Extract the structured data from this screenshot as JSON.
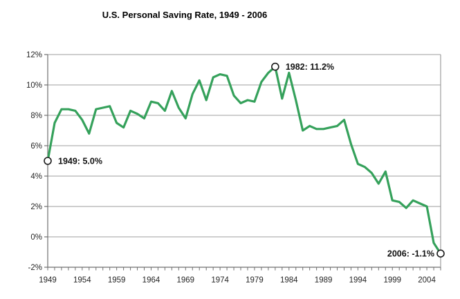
{
  "title": "U.S. Personal Saving Rate, 1949 - 2006",
  "colors": {
    "background": "#ffffff",
    "line": "#35a15b",
    "grid": "#9d9d9d",
    "axis": "#6e6e6e",
    "tick_text": "#262626",
    "title_text": "#111111",
    "annotation_text": "#111111",
    "marker_fill": "#ffffff",
    "marker_stroke": "#1a1a1a"
  },
  "chart_data": {
    "type": "line",
    "title": "U.S. Personal Saving Rate, 1949 - 2006",
    "xlabel": "",
    "ylabel": "",
    "grid": "horizontal",
    "legend": "none",
    "ylim": [
      -2,
      12
    ],
    "y_tick_step": 2,
    "y_tick_labels": [
      "12%",
      "10%",
      "8%",
      "6%",
      "4%",
      "2%",
      "0%",
      "-2%"
    ],
    "x_tick_labels": [
      "1949",
      "1954",
      "1959",
      "1964",
      "1969",
      "1974",
      "1979",
      "1984",
      "1989",
      "1994",
      "1999",
      "2004"
    ],
    "x_minor_tick_every": 1,
    "x": [
      1949,
      1950,
      1951,
      1952,
      1953,
      1954,
      1955,
      1956,
      1957,
      1958,
      1959,
      1960,
      1961,
      1962,
      1963,
      1964,
      1965,
      1966,
      1967,
      1968,
      1969,
      1970,
      1971,
      1972,
      1973,
      1974,
      1975,
      1976,
      1977,
      1978,
      1979,
      1980,
      1981,
      1982,
      1983,
      1984,
      1985,
      1986,
      1987,
      1988,
      1989,
      1990,
      1991,
      1992,
      1993,
      1994,
      1995,
      1996,
      1997,
      1998,
      1999,
      2000,
      2001,
      2002,
      2003,
      2004,
      2005,
      2006
    ],
    "values": [
      5.0,
      7.5,
      8.4,
      8.4,
      8.3,
      7.7,
      6.8,
      8.4,
      8.5,
      8.6,
      7.5,
      7.2,
      8.3,
      8.1,
      7.8,
      8.9,
      8.8,
      8.3,
      9.6,
      8.5,
      7.8,
      9.4,
      10.3,
      9.0,
      10.5,
      10.7,
      10.6,
      9.3,
      8.8,
      9.0,
      8.9,
      10.2,
      10.8,
      11.2,
      9.1,
      10.8,
      9.0,
      7.0,
      7.3,
      7.1,
      7.1,
      7.2,
      7.3,
      7.7,
      6.1,
      4.8,
      4.6,
      4.2,
      3.5,
      4.3,
      2.4,
      2.3,
      1.9,
      2.4,
      2.2,
      2.0,
      -0.4,
      -1.1
    ],
    "annotations": [
      {
        "x": 1949,
        "y": 5.0,
        "label": "1949: 5.0%",
        "side": "right"
      },
      {
        "x": 1982,
        "y": 11.2,
        "label": "1982: 11.2%",
        "side": "right"
      },
      {
        "x": 2006,
        "y": -1.1,
        "label": "2006: -1.1%",
        "side": "left"
      }
    ]
  }
}
